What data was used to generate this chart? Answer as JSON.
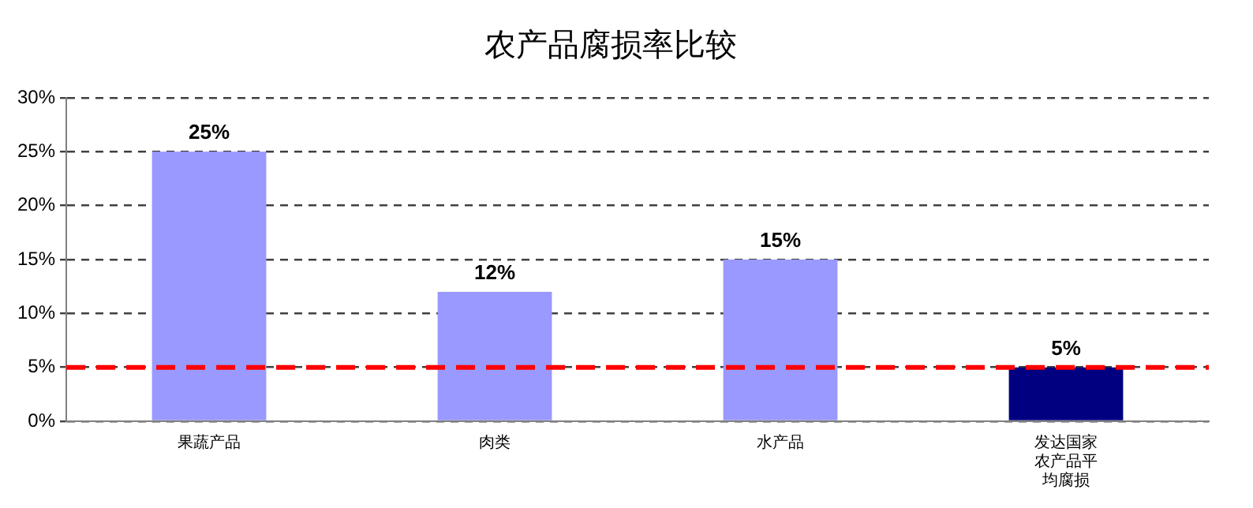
{
  "chart_data": {
    "type": "bar",
    "title": "农产品腐损率比较",
    "categories": [
      "果蔬产品",
      "肉类",
      "水产品",
      "发达国家农产品平均腐损"
    ],
    "values": [
      25,
      12,
      15,
      5
    ],
    "colors": [
      "#9999ff",
      "#9999ff",
      "#9999ff",
      "#000080"
    ],
    "value_labels": [
      "25%",
      "12%",
      "15%",
      "5%"
    ],
    "ylim": [
      0,
      30
    ],
    "yticks": [
      {
        "value": 0,
        "label": "0%"
      },
      {
        "value": 5,
        "label": "5%"
      },
      {
        "value": 10,
        "label": "10%"
      },
      {
        "value": 15,
        "label": "15%"
      },
      {
        "value": 20,
        "label": "20%"
      },
      {
        "value": 25,
        "label": "25%"
      },
      {
        "value": 30,
        "label": "30%"
      }
    ],
    "ref_lines": [
      {
        "axis": "y",
        "value": 5,
        "color": "#ff0000",
        "line_style": "dashed"
      }
    ],
    "grid": "y",
    "legend": false
  }
}
